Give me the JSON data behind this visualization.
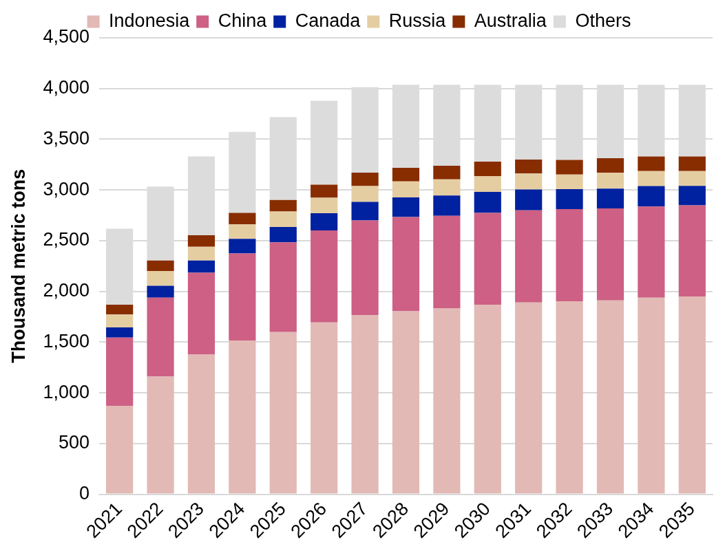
{
  "chart_data": {
    "type": "bar",
    "stacked": true,
    "ylabel": "Thousand metric tons",
    "categories": [
      "2021",
      "2022",
      "2023",
      "2024",
      "2025",
      "2026",
      "2027",
      "2028",
      "2029",
      "2030",
      "2031",
      "2032",
      "2033",
      "2034",
      "2035"
    ],
    "series": [
      {
        "name": "Indonesia",
        "color": "#e2b9b5",
        "values": [
          872,
          1160,
          1377,
          1516,
          1600,
          1694,
          1766,
          1804,
          1831,
          1867,
          1891,
          1903,
          1912,
          1939,
          1951
        ]
      },
      {
        "name": "China",
        "color": "#cd6084",
        "values": [
          673,
          779,
          807,
          858,
          884,
          908,
          934,
          930,
          915,
          908,
          908,
          908,
          906,
          898,
          898
        ]
      },
      {
        "name": "Canada",
        "color": "#0021a0",
        "values": [
          101,
          117,
          120,
          144,
          151,
          168,
          183,
          192,
          199,
          206,
          206,
          197,
          195,
          202,
          192
        ]
      },
      {
        "name": "Russia",
        "color": "#e5cda2",
        "values": [
          127,
          145,
          137,
          142,
          152,
          154,
          156,
          159,
          159,
          156,
          157,
          144,
          156,
          147,
          145
        ]
      },
      {
        "name": "Australia",
        "color": "#882d00",
        "values": [
          96,
          103,
          113,
          115,
          115,
          129,
          132,
          134,
          134,
          142,
          137,
          144,
          144,
          144,
          144
        ]
      },
      {
        "name": "Others",
        "color": "#dcdcdc",
        "values": [
          749,
          730,
          776,
          797,
          817,
          827,
          843,
          819,
          800,
          759,
          739,
          742,
          725,
          708,
          708
        ]
      }
    ],
    "ylim": [
      0,
      4500
    ],
    "yticks": [
      0,
      500,
      {
        "value": 1000,
        "label": "1,000"
      },
      {
        "value": 1500,
        "label": "1,500"
      },
      {
        "value": 2000,
        "label": "2,000"
      },
      {
        "value": 2500,
        "label": "2,500"
      },
      {
        "value": 3000,
        "label": "3,000"
      },
      {
        "value": 3500,
        "label": "3,500"
      },
      {
        "value": 4000,
        "label": "4,000"
      },
      {
        "value": 4500,
        "label": "4,500"
      }
    ],
    "grid": "y",
    "legend": "top"
  }
}
